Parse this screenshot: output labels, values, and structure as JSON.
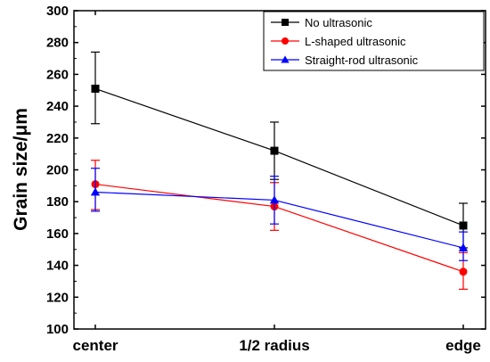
{
  "chart_data": {
    "type": "line",
    "categories": [
      "center",
      "1/2 radius",
      "edge"
    ],
    "ylabel": "Grain size/μm",
    "xlabel": "",
    "ylim": [
      100,
      300
    ],
    "yticks": [
      100,
      120,
      140,
      160,
      180,
      200,
      220,
      240,
      260,
      280,
      300
    ],
    "grid": false,
    "legend_position": "top-right",
    "series": [
      {
        "name": "No ultrasonic",
        "color": "#000000",
        "marker": "square",
        "values": [
          251,
          212,
          165
        ],
        "error": [
          [
            22,
            23
          ],
          [
            18,
            18
          ],
          [
            14,
            14
          ]
        ]
      },
      {
        "name": "L-shaped ultrasonic",
        "color": "#ff0000",
        "marker": "circle",
        "values": [
          191,
          177,
          136
        ],
        "error": [
          [
            16,
            15
          ],
          [
            15,
            15
          ],
          [
            11,
            12
          ]
        ]
      },
      {
        "name": "Straight-rod ultrasonic",
        "color": "#0000ff",
        "marker": "triangle",
        "values": [
          186,
          181,
          151
        ],
        "error": [
          [
            12,
            15
          ],
          [
            15,
            15
          ],
          [
            8,
            10
          ]
        ]
      }
    ]
  }
}
